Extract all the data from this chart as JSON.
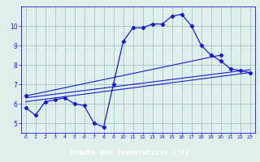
{
  "background_color": "#dff0ec",
  "line_color": "#1a1acc",
  "grid_color": "#99bbbb",
  "xlabel": "Graphe des températures (°c)",
  "xlabel_bg": "#2222aa",
  "xlim": [
    -0.5,
    23.5
  ],
  "ylim": [
    4.5,
    11.0
  ],
  "xticks": [
    0,
    1,
    2,
    3,
    4,
    5,
    6,
    7,
    8,
    9,
    10,
    11,
    12,
    13,
    14,
    15,
    16,
    17,
    18,
    19,
    20,
    21,
    22,
    23
  ],
  "yticks": [
    5,
    6,
    7,
    8,
    9,
    10
  ],
  "hourly_x": [
    0,
    1,
    2,
    3,
    4,
    5,
    6,
    7,
    8,
    9,
    10,
    11,
    12,
    13,
    14,
    15,
    16,
    17,
    18,
    19,
    20,
    21,
    22,
    23
  ],
  "hourly_y": [
    5.8,
    5.4,
    6.1,
    6.2,
    6.3,
    6.0,
    5.9,
    5.0,
    4.8,
    7.0,
    9.2,
    9.9,
    9.9,
    10.1,
    10.1,
    10.5,
    10.6,
    10.0,
    9.0,
    8.5,
    8.2,
    7.8,
    7.7,
    7.6
  ],
  "line1_x": [
    0,
    23
  ],
  "line1_y": [
    6.1,
    7.6
  ],
  "line2_x": [
    0,
    23
  ],
  "line2_y": [
    6.3,
    7.75
  ],
  "line3_x": [
    0,
    20
  ],
  "line3_y": [
    6.4,
    8.5
  ]
}
